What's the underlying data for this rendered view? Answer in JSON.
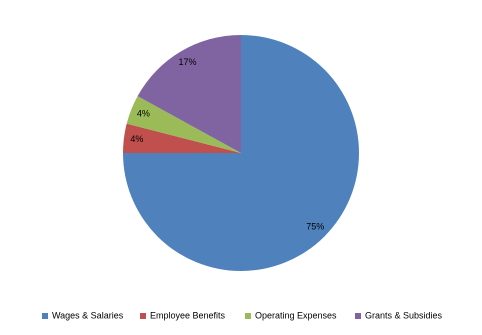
{
  "chart_data": {
    "type": "pie",
    "categories": [
      "Wages & Salaries",
      "Employee Benefits",
      "Operating Expenses",
      "Grants & Subsidies"
    ],
    "values": [
      75,
      4,
      4,
      17
    ],
    "value_labels": [
      "75%",
      "4%",
      "4%",
      "17%"
    ],
    "colors": [
      "#4f81bd",
      "#c0504d",
      "#9bbb59",
      "#8064a2"
    ],
    "legend": "bottom"
  }
}
